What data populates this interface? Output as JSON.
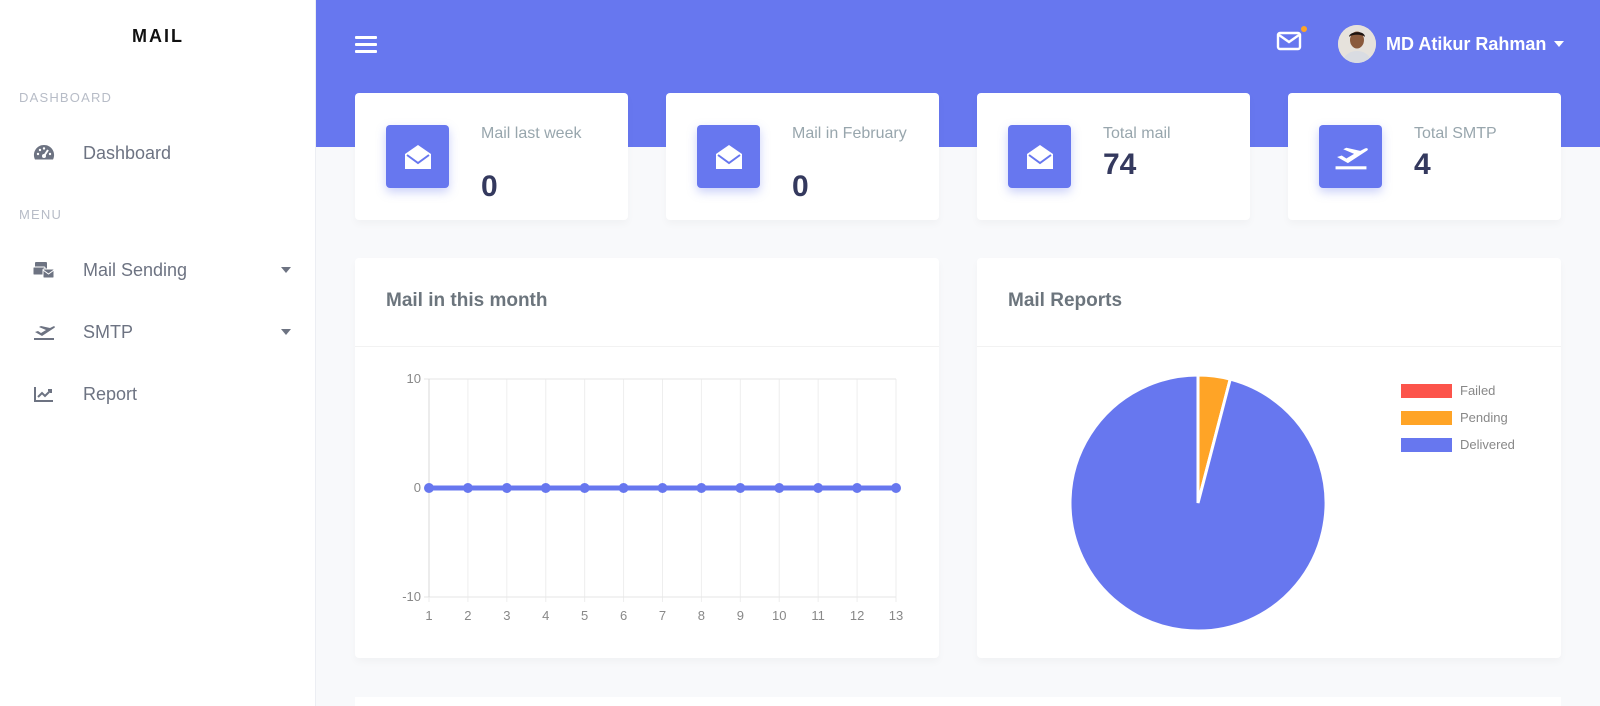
{
  "sidebar": {
    "brand": "MAIL",
    "section_dashboard": "DASHBOARD",
    "section_menu": "MENU",
    "items": [
      {
        "label": "Dashboard",
        "icon": "speedometer-icon"
      },
      {
        "label": "Mail Sending",
        "icon": "mail-bulk-icon"
      },
      {
        "label": "SMTP",
        "icon": "plane-departure-icon"
      },
      {
        "label": "Report",
        "icon": "chart-line-icon"
      }
    ]
  },
  "header": {
    "user_name": "MD Atikur Rahman",
    "notification_color": "#ffa426"
  },
  "stats": [
    {
      "title": "Mail last week",
      "value": "0",
      "icon": "envelope-open-icon"
    },
    {
      "title": "Mail in February",
      "value": "0",
      "icon": "envelope-open-icon"
    },
    {
      "title": "Total mail",
      "value": "74",
      "icon": "envelope-open-icon"
    },
    {
      "title": "Total SMTP",
      "value": "4",
      "icon": "plane-departure-icon"
    }
  ],
  "colors": {
    "primary": "#6777ef",
    "failed": "#fc544b",
    "pending": "#ffa426",
    "delivered": "#6777ef"
  },
  "chart_data": [
    {
      "type": "line",
      "title": "Mail in this month",
      "x": [
        1,
        2,
        3,
        4,
        5,
        6,
        7,
        8,
        9,
        10,
        11,
        12,
        13
      ],
      "series": [
        {
          "values": [
            0,
            0,
            0,
            0,
            0,
            0,
            0,
            0,
            0,
            0,
            0,
            0,
            0
          ]
        }
      ],
      "ylim": [
        -10,
        10
      ],
      "yticks": [
        "10",
        "0",
        "-10"
      ],
      "grid": true
    },
    {
      "type": "pie",
      "title": "Mail Reports",
      "legend_position": "right",
      "slices": [
        {
          "label": "Failed",
          "value": 0,
          "color": "#fc544b"
        },
        {
          "label": "Pending",
          "value": 3,
          "color": "#ffa426"
        },
        {
          "label": "Delivered",
          "value": 71,
          "color": "#6777ef"
        }
      ]
    }
  ]
}
